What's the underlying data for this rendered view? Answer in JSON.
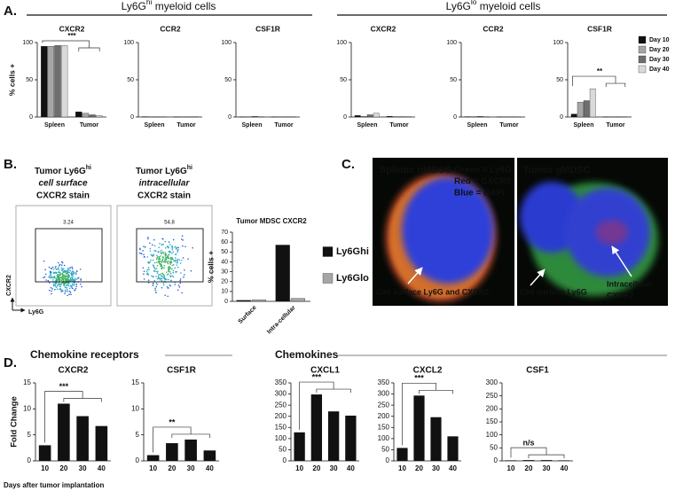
{
  "labels": {
    "a": "A.",
    "b": "B.",
    "c": "C.",
    "d": "D."
  },
  "headers": [
    {
      "parts": [
        "Ly6G",
        "hi",
        " myeloid cells"
      ]
    },
    {
      "parts": [
        "Ly6G",
        "lo",
        " myeloid cells"
      ]
    },
    {
      "text": "Chemokine receptors"
    },
    {
      "text": "Chemokines"
    }
  ],
  "flow": {
    "plots": [
      {
        "title": [
          "Tumor Ly6G",
          "hi"
        ],
        "subtitle": "cell surface",
        "stain": "CXCR2 stain",
        "gate": "3.24"
      },
      {
        "title": [
          "Tumor Ly6G",
          "hi"
        ],
        "subtitle": "intracellular",
        "stain": "CXCR2 stain",
        "gate": "54.8"
      }
    ],
    "ylabel": "CXCR2",
    "xlabel": "Ly6G"
  },
  "microscopy": [
    {
      "title": "Splenic gMDSC",
      "legend": [
        "Green = Ly6G",
        "Red = CXCR2",
        "Blue = DAPI"
      ],
      "notes": [
        "Cell surface Ly6G and CXCR2"
      ]
    },
    {
      "title": "Tumor gMDSC",
      "notes": [
        "Cell surface Ly6G",
        "Intracellular",
        "CXCR2"
      ]
    }
  ],
  "chart_data": [
    {
      "type": "bar",
      "title": "CXCR2",
      "ylabel": "% cells +",
      "categories": [
        "Spleen",
        "Tumor"
      ],
      "series": [
        {
          "color": "#111111",
          "values": [
            95,
            7
          ]
        },
        {
          "color": "#a6a6a6",
          "values": [
            95,
            5
          ]
        },
        {
          "color": "#6e6e6e",
          "values": [
            96,
            3
          ]
        },
        {
          "color": "#d9d9d9",
          "values": [
            96,
            2
          ]
        }
      ],
      "ylim": [
        0,
        100
      ],
      "yticks": [
        0,
        50,
        100
      ],
      "annotation": "***"
    },
    {
      "type": "bar",
      "title": "CCR2",
      "categories": [
        "Spleen",
        "Tumor"
      ],
      "series": [
        {
          "color": "#111111",
          "values": [
            0.5,
            0.3
          ]
        },
        {
          "color": "#a6a6a6",
          "values": [
            0.3,
            0.3
          ]
        },
        {
          "color": "#6e6e6e",
          "values": [
            0.3,
            0.3
          ]
        },
        {
          "color": "#d9d9d9",
          "values": [
            0.3,
            0.5
          ]
        }
      ],
      "ylim": [
        0,
        100
      ],
      "yticks": [
        0,
        50,
        100
      ]
    },
    {
      "type": "bar",
      "title": "CSF1R",
      "categories": [
        "Spleen",
        "Tumor"
      ],
      "series": [
        {
          "color": "#111111",
          "values": [
            0.3,
            0.3
          ]
        },
        {
          "color": "#a6a6a6",
          "values": [
            0.3,
            0.3
          ]
        },
        {
          "color": "#6e6e6e",
          "values": [
            1,
            0.3
          ]
        },
        {
          "color": "#d9d9d9",
          "values": [
            0.5,
            0.3
          ]
        }
      ],
      "ylim": [
        0,
        100
      ],
      "yticks": [
        0,
        50,
        100
      ]
    },
    {
      "type": "bar",
      "title": "CXCR2",
      "categories": [
        "Spleen",
        "Tumor"
      ],
      "series": [
        {
          "color": "#111111",
          "values": [
            2,
            1
          ]
        },
        {
          "color": "#a6a6a6",
          "values": [
            1,
            0.5
          ]
        },
        {
          "color": "#6e6e6e",
          "values": [
            3,
            0.5
          ]
        },
        {
          "color": "#d9d9d9",
          "values": [
            5,
            0.5
          ]
        }
      ],
      "ylim": [
        0,
        100
      ],
      "yticks": [
        0,
        50,
        100
      ]
    },
    {
      "type": "bar",
      "title": "CCR2",
      "categories": [
        "Spleen",
        "Tumor"
      ],
      "series": [
        {
          "color": "#111111",
          "values": [
            0.5,
            0.3
          ]
        },
        {
          "color": "#a6a6a6",
          "values": [
            0.5,
            0.3
          ]
        },
        {
          "color": "#6e6e6e",
          "values": [
            1,
            0.3
          ]
        },
        {
          "color": "#d9d9d9",
          "values": [
            0.5,
            0.3
          ]
        }
      ],
      "ylim": [
        0,
        100
      ],
      "yticks": [
        0,
        50,
        100
      ]
    },
    {
      "type": "bar",
      "title": "CSF1R",
      "categories": [
        "Spleen",
        "Tumor"
      ],
      "series": [
        {
          "name": "Day 10",
          "color": "#111111",
          "values": [
            4,
            0.3
          ]
        },
        {
          "name": "Day 20",
          "color": "#a6a6a6",
          "values": [
            20,
            0.3
          ]
        },
        {
          "name": "Day 30",
          "color": "#6e6e6e",
          "values": [
            22,
            0.3
          ]
        },
        {
          "name": "Day 40",
          "color": "#d9d9d9",
          "values": [
            38,
            0.3
          ]
        }
      ],
      "ylim": [
        0,
        100
      ],
      "yticks": [
        0,
        50,
        100
      ],
      "annotation": "**",
      "legend": "right"
    },
    {
      "type": "bar",
      "title": "Tumor MDSC CXCR2",
      "ylabel": "% cells +",
      "categories": [
        "Surface",
        "Intra-cellular"
      ],
      "series": [
        {
          "name": "Ly6Ghi",
          "color": "#111111",
          "values": [
            1,
            57
          ]
        },
        {
          "name": "Ly6Glo",
          "color": "#a6a6a6",
          "values": [
            1.5,
            3
          ]
        }
      ],
      "ylim": [
        0,
        70
      ],
      "yticks": [
        0,
        10,
        20,
        30,
        40,
        50,
        60,
        70
      ],
      "legend": "right"
    },
    {
      "type": "bar",
      "title": "CXCR2",
      "ylabel": "Fold Change",
      "xlabel": "Days after tumor implantation",
      "categories": [
        "10",
        "20",
        "30",
        "40"
      ],
      "values": [
        3,
        11,
        8.6,
        6.7
      ],
      "color": "#111111",
      "ylim": [
        0,
        15
      ],
      "yticks": [
        0,
        5,
        10,
        15
      ],
      "annotation": "***"
    },
    {
      "type": "bar",
      "title": "CSF1R",
      "categories": [
        "10",
        "20",
        "30",
        "40"
      ],
      "values": [
        1.1,
        3.4,
        4.1,
        2
      ],
      "color": "#111111",
      "ylim": [
        0,
        15
      ],
      "yticks": [
        0,
        5,
        10,
        15
      ],
      "annotation": "**"
    },
    {
      "type": "bar",
      "title": "CXCL1",
      "categories": [
        "10",
        "20",
        "30",
        "40"
      ],
      "values": [
        128,
        298,
        222,
        203
      ],
      "color": "#111111",
      "ylim": [
        0,
        350
      ],
      "yticks": [
        0,
        50,
        100,
        150,
        200,
        250,
        300,
        350
      ],
      "annotation": "***"
    },
    {
      "type": "bar",
      "title": "CXCL2",
      "categories": [
        "10",
        "20",
        "30",
        "40"
      ],
      "values": [
        58,
        293,
        196,
        110
      ],
      "color": "#111111",
      "ylim": [
        0,
        350
      ],
      "yticks": [
        0,
        50,
        100,
        150,
        200,
        250,
        300,
        350
      ],
      "annotation": "***"
    },
    {
      "type": "bar",
      "title": "CSF1",
      "categories": [
        "10",
        "20",
        "30",
        "40"
      ],
      "values": [
        2,
        3,
        3,
        2
      ],
      "color": "#111111",
      "ylim": [
        0,
        300
      ],
      "yticks": [
        0,
        50,
        100,
        150,
        200,
        250,
        300
      ],
      "annotation": "n/s"
    }
  ]
}
